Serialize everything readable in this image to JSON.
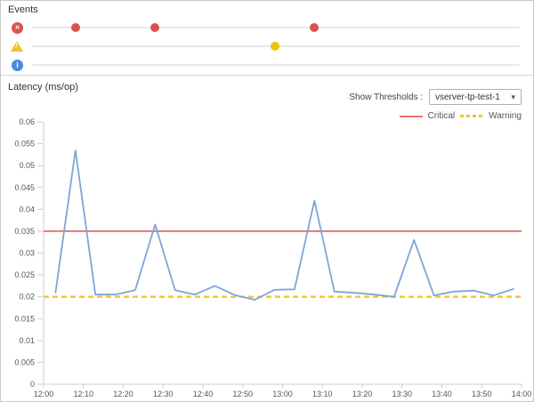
{
  "events_panel": {
    "title": "Events",
    "rows": [
      {
        "severity": "critical",
        "icon": "error-circle-icon",
        "icon_glyph": "✕",
        "icon_color": "#d9534f",
        "dot_color": "#d9534f",
        "event_minutes": [
          8,
          28,
          68
        ]
      },
      {
        "severity": "warning",
        "icon": "warning-triangle-icon",
        "icon_glyph": "!",
        "icon_color": "#f0c330",
        "dot_color": "#eec20c",
        "event_minutes": [
          58
        ]
      },
      {
        "severity": "info",
        "icon": "info-circle-icon",
        "icon_glyph": "i",
        "icon_color": "#4a89dc",
        "dot_color": "#4a89dc",
        "event_minutes": []
      }
    ]
  },
  "latency_panel": {
    "title": "Latency (ms/op)",
    "show_thresholds_label": "Show Thresholds :",
    "threshold_select": {
      "value": "vserver-tp-test-1",
      "caret": "▾"
    },
    "legend": [
      {
        "label": "Critical",
        "color": "#e9726e",
        "style": "solid"
      },
      {
        "label": "Warning",
        "color": "#f3c623",
        "style": "dashed"
      }
    ]
  },
  "chart_data": {
    "type": "line",
    "title": "Latency (ms/op)",
    "ylabel": "Latency (ms/op)",
    "xlabel": "",
    "ylim": [
      0,
      0.06
    ],
    "x_range": [
      "12:00",
      "14:00"
    ],
    "grid": false,
    "legend_position": "top-right",
    "series": [
      {
        "name": "Latency",
        "color": "#7ba7d7",
        "x": [
          "12:03",
          "12:08",
          "12:13",
          "12:18",
          "12:23",
          "12:28",
          "12:33",
          "12:38",
          "12:43",
          "12:48",
          "12:53",
          "12:58",
          "13:03",
          "13:08",
          "13:13",
          "13:18",
          "13:23",
          "13:28",
          "13:33",
          "13:38",
          "13:43",
          "13:48",
          "13:53",
          "13:58"
        ],
        "x_minutes": [
          3,
          8,
          13,
          18,
          23,
          28,
          33,
          38,
          43,
          48,
          53,
          58,
          63,
          68,
          73,
          78,
          83,
          88,
          93,
          98,
          103,
          108,
          113,
          118
        ],
        "values": [
          0.021,
          0.0535,
          0.0205,
          0.0205,
          0.0215,
          0.0365,
          0.0215,
          0.0205,
          0.0225,
          0.0204,
          0.0193,
          0.0216,
          0.0217,
          0.042,
          0.0212,
          0.0209,
          0.0205,
          0.02,
          0.033,
          0.0203,
          0.0212,
          0.0214,
          0.0203,
          0.0218
        ]
      }
    ],
    "thresholds": [
      {
        "name": "Critical",
        "value": 0.035,
        "color": "#e9726e",
        "style": "solid"
      },
      {
        "name": "Warning",
        "value": 0.02,
        "color": "#f3c623",
        "style": "dashed"
      }
    ],
    "y_ticks": [
      "0",
      "0.005",
      "0.01",
      "0.015",
      "0.02",
      "0.025",
      "0.03",
      "0.035",
      "0.04",
      "0.045",
      "0.05",
      "0.055",
      "0.06"
    ],
    "x_ticks": [
      {
        "label": "12:00",
        "minute": 0
      },
      {
        "label": "12:10",
        "minute": 10
      },
      {
        "label": "12:20",
        "minute": 20
      },
      {
        "label": "12:30",
        "minute": 30
      },
      {
        "label": "12:40",
        "minute": 40
      },
      {
        "label": "12:50",
        "minute": 50
      },
      {
        "label": "13:00",
        "minute": 60
      },
      {
        "label": "13:10",
        "minute": 70
      },
      {
        "label": "13:20",
        "minute": 80
      },
      {
        "label": "13:30",
        "minute": 90
      },
      {
        "label": "13:40",
        "minute": 100
      },
      {
        "label": "13:50",
        "minute": 110
      },
      {
        "label": "14:00",
        "minute": 120
      }
    ]
  }
}
